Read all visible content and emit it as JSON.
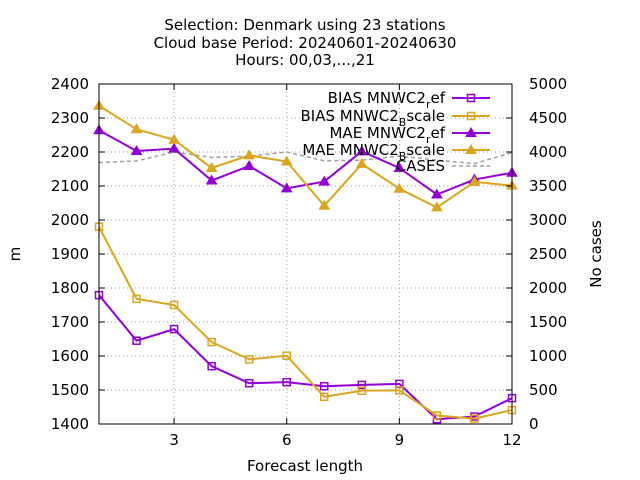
{
  "title": {
    "line1": "Selection: Denmark using    23 stations",
    "line2": "Cloud base   Period: 20240601-20240630",
    "line3": "Hours: 00,03,...,21"
  },
  "chart_data": {
    "type": "line",
    "xlabel": "Forecast length",
    "ylabel": "m",
    "y2label": "No cases",
    "xlim": [
      1,
      12
    ],
    "ylim": [
      1400,
      2400
    ],
    "y2lim": [
      0,
      5000
    ],
    "x_ticks": [
      3,
      6,
      9,
      12
    ],
    "y_ticks": [
      1400,
      1500,
      1600,
      1700,
      1800,
      1900,
      2000,
      2100,
      2200,
      2300,
      2400
    ],
    "y2_ticks": [
      0,
      500,
      1000,
      1500,
      2000,
      2500,
      3000,
      3500,
      4000,
      4500,
      5000
    ],
    "grid": true,
    "legend_position": "top-right",
    "x": [
      1,
      2,
      3,
      4,
      5,
      6,
      7,
      8,
      9,
      10,
      11,
      12
    ],
    "series": [
      {
        "name": "BIAS MNWC2_ref",
        "legend": {
          "main": "BIAS MNWC2",
          "sub": "r",
          "tail": "ef"
        },
        "color": "#9400d3",
        "marker": "square",
        "axis": "y",
        "values": [
          1779,
          1645,
          1679,
          1570,
          1520,
          1523,
          1511,
          1515,
          1518,
          1414,
          1422,
          1476
        ]
      },
      {
        "name": "BIAS MNWC2_Bscale",
        "legend": {
          "main": "BIAS MNWC2",
          "sub": "B",
          "tail": "scale"
        },
        "color": "#daa520",
        "marker": "square",
        "axis": "y",
        "values": [
          1980,
          1768,
          1750,
          1641,
          1590,
          1601,
          1480,
          1498,
          1499,
          1425,
          1416,
          1441
        ]
      },
      {
        "name": "MAE MNWC2_ref",
        "legend": {
          "main": "MAE MNWC2",
          "sub": "r",
          "tail": "ef"
        },
        "color": "#9400d3",
        "marker": "triangle",
        "axis": "y",
        "values": [
          2264,
          2203,
          2210,
          2116,
          2159,
          2093,
          2113,
          2202,
          2153,
          2075,
          2119,
          2139
        ]
      },
      {
        "name": "MAE MNWC2_Bscale",
        "legend": {
          "main": "MAE MNWC2",
          "sub": "B",
          "tail": "scale"
        },
        "color": "#daa520",
        "marker": "triangle",
        "axis": "y",
        "values": [
          2336,
          2267,
          2236,
          2153,
          2190,
          2172,
          2042,
          2165,
          2092,
          2037,
          2112,
          2101
        ]
      },
      {
        "name": "CASES",
        "legend": {
          "main": "CASES",
          "sub": "",
          "tail": ""
        },
        "color": "#a0a0a0",
        "marker": "none",
        "dashed": true,
        "axis": "y2",
        "values": [
          3845,
          3868,
          4000,
          3920,
          3940,
          4000,
          3870,
          3880,
          3940,
          3880,
          3830,
          3990
        ]
      }
    ]
  }
}
